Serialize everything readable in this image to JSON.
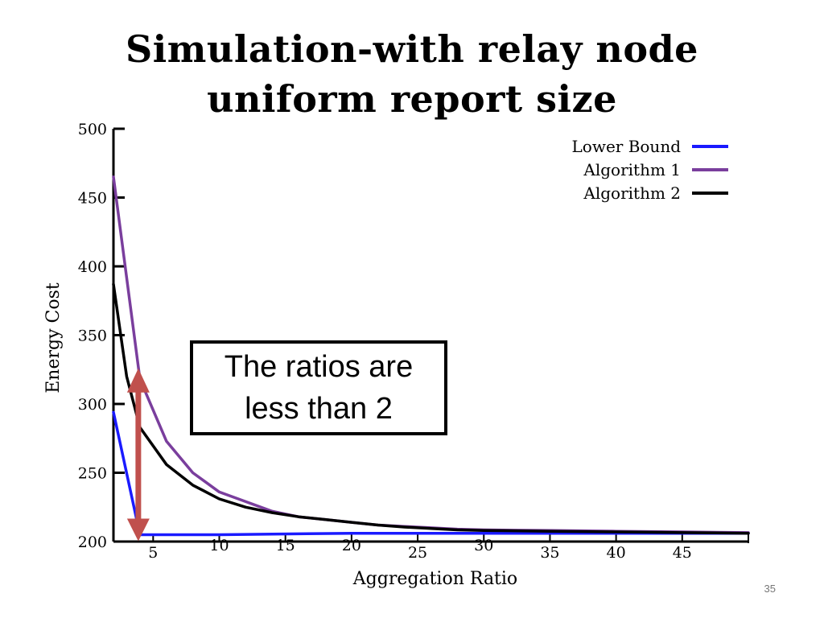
{
  "slide": {
    "title_line1": "Simulation-with relay node",
    "title_line2": "uniform report size",
    "callout_line1": "The ratios are",
    "callout_line2": "less than 2",
    "page_number": "35"
  },
  "chart_data": {
    "type": "line",
    "title": "Simulation-with relay node uniform report size",
    "xlabel": "Aggregation Ratio",
    "ylabel": "Energy Cost",
    "xlim": [
      2,
      50
    ],
    "ylim": [
      200,
      500
    ],
    "yticks": [
      200,
      250,
      300,
      350,
      400,
      450,
      500
    ],
    "xticks": [
      5,
      10,
      15,
      20,
      25,
      30,
      35,
      40,
      45
    ],
    "legend_position": "top-right",
    "series": [
      {
        "name": "Lower Bound",
        "color": "#1a1aff",
        "x": [
          2,
          4,
          10,
          20,
          30,
          40,
          50
        ],
        "y": [
          294,
          205,
          205,
          206,
          206,
          206,
          206
        ]
      },
      {
        "name": "Algorithm 1",
        "color": "#7a3e9d",
        "x": [
          2,
          4,
          6,
          8,
          10,
          12,
          14,
          16,
          18,
          20,
          22,
          24,
          26,
          28,
          30,
          35,
          40,
          45,
          50
        ],
        "y": [
          465,
          318,
          273,
          250,
          236,
          229,
          222,
          218,
          216,
          214,
          212,
          211,
          210,
          209,
          208.5,
          208,
          207.5,
          207,
          206.5
        ]
      },
      {
        "name": "Algorithm 2",
        "color": "#000000",
        "x": [
          2,
          3,
          4,
          6,
          8,
          10,
          12,
          14,
          16,
          18,
          20,
          22,
          24,
          26,
          28,
          30,
          35,
          40,
          45,
          50
        ],
        "y": [
          387,
          320,
          283,
          256,
          241,
          231,
          225,
          221,
          218,
          216,
          214,
          212,
          210.5,
          209.5,
          208.5,
          208,
          207.5,
          207,
          206.5,
          206
        ]
      }
    ],
    "annotation": {
      "type": "double-arrow",
      "color": "#c0504d",
      "x": 4,
      "y_from": 205,
      "y_to": 320
    }
  }
}
